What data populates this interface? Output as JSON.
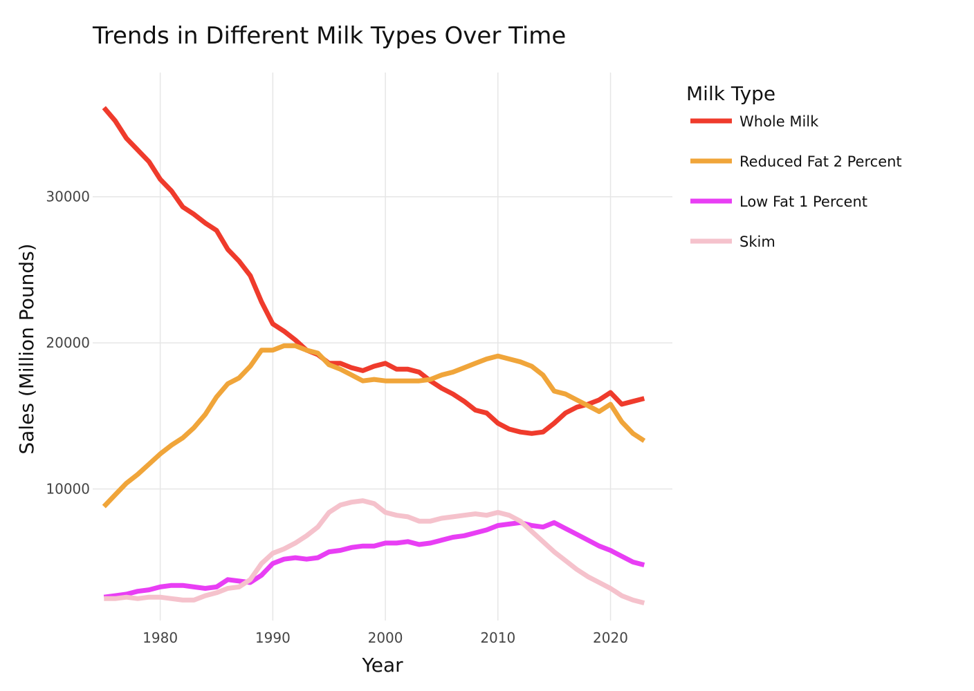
{
  "chart_data": {
    "type": "line",
    "title": "Trends in Different Milk Types Over Time",
    "xlabel": "Year",
    "ylabel": "Sales (Million Pounds)",
    "xlim": [
      1974,
      2025.5
    ],
    "ylim": [
      1000,
      38500
    ],
    "xticks": [
      1980,
      1990,
      2000,
      2010,
      2020
    ],
    "yticks": [
      10000,
      20000,
      30000
    ],
    "grid": true,
    "legend": {
      "title": "Milk Type",
      "placement": "right"
    },
    "x": [
      1975,
      1976,
      1977,
      1978,
      1979,
      1980,
      1981,
      1982,
      1983,
      1984,
      1985,
      1986,
      1987,
      1988,
      1989,
      1990,
      1991,
      1992,
      1993,
      1994,
      1995,
      1996,
      1997,
      1998,
      1999,
      2000,
      2001,
      2002,
      2003,
      2004,
      2005,
      2006,
      2007,
      2008,
      2009,
      2010,
      2011,
      2012,
      2013,
      2014,
      2015,
      2016,
      2017,
      2018,
      2019,
      2020,
      2021,
      2022,
      2023
    ],
    "series": [
      {
        "name": "Whole Milk",
        "color": "#ef3b2c",
        "values": [
          36100,
          35200,
          34000,
          33200,
          32400,
          31200,
          30400,
          29300,
          28800,
          28200,
          27700,
          26400,
          25600,
          24600,
          22800,
          21300,
          20800,
          20200,
          19500,
          19200,
          18600,
          18600,
          18300,
          18100,
          18400,
          18600,
          18200,
          18200,
          18000,
          17400,
          16900,
          16500,
          16000,
          15400,
          15200,
          14500,
          14100,
          13900,
          13800,
          13900,
          14500,
          15200,
          15600,
          15800,
          16100,
          16600,
          15800,
          16000,
          16200
        ]
      },
      {
        "name": "Reduced Fat 2 Percent",
        "color": "#f0a53a",
        "values": [
          8800,
          9600,
          10400,
          11000,
          11700,
          12400,
          13000,
          13500,
          14200,
          15100,
          16300,
          17200,
          17600,
          18400,
          19500,
          19500,
          19800,
          19800,
          19500,
          19300,
          18500,
          18200,
          17800,
          17400,
          17500,
          17400,
          17400,
          17400,
          17400,
          17500,
          17800,
          18000,
          18300,
          18600,
          18900,
          19100,
          18900,
          18700,
          18400,
          17800,
          16700,
          16500,
          16100,
          15700,
          15300,
          15800,
          14600,
          13800,
          13300
        ]
      },
      {
        "name": "Low Fat 1 Percent",
        "color": "#e83ef4",
        "values": [
          2600,
          2700,
          2800,
          3000,
          3100,
          3300,
          3400,
          3400,
          3300,
          3200,
          3300,
          3800,
          3700,
          3600,
          4100,
          4900,
          5200,
          5300,
          5200,
          5300,
          5700,
          5800,
          6000,
          6100,
          6100,
          6300,
          6300,
          6400,
          6200,
          6300,
          6500,
          6700,
          6800,
          7000,
          7200,
          7500,
          7600,
          7700,
          7500,
          7400,
          7700,
          7300,
          6900,
          6500,
          6100,
          5800,
          5400,
          5000,
          4800
        ]
      },
      {
        "name": "Skim",
        "color": "#f5c2cc",
        "values": [
          2500,
          2500,
          2600,
          2500,
          2600,
          2600,
          2500,
          2400,
          2400,
          2700,
          2900,
          3200,
          3300,
          3800,
          4900,
          5600,
          5900,
          6300,
          6800,
          7400,
          8400,
          8900,
          9100,
          9200,
          9000,
          8400,
          8200,
          8100,
          7800,
          7800,
          8000,
          8100,
          8200,
          8300,
          8200,
          8400,
          8200,
          7800,
          7100,
          6400,
          5700,
          5100,
          4500,
          4000,
          3600,
          3200,
          2700,
          2400,
          2200
        ]
      }
    ]
  }
}
